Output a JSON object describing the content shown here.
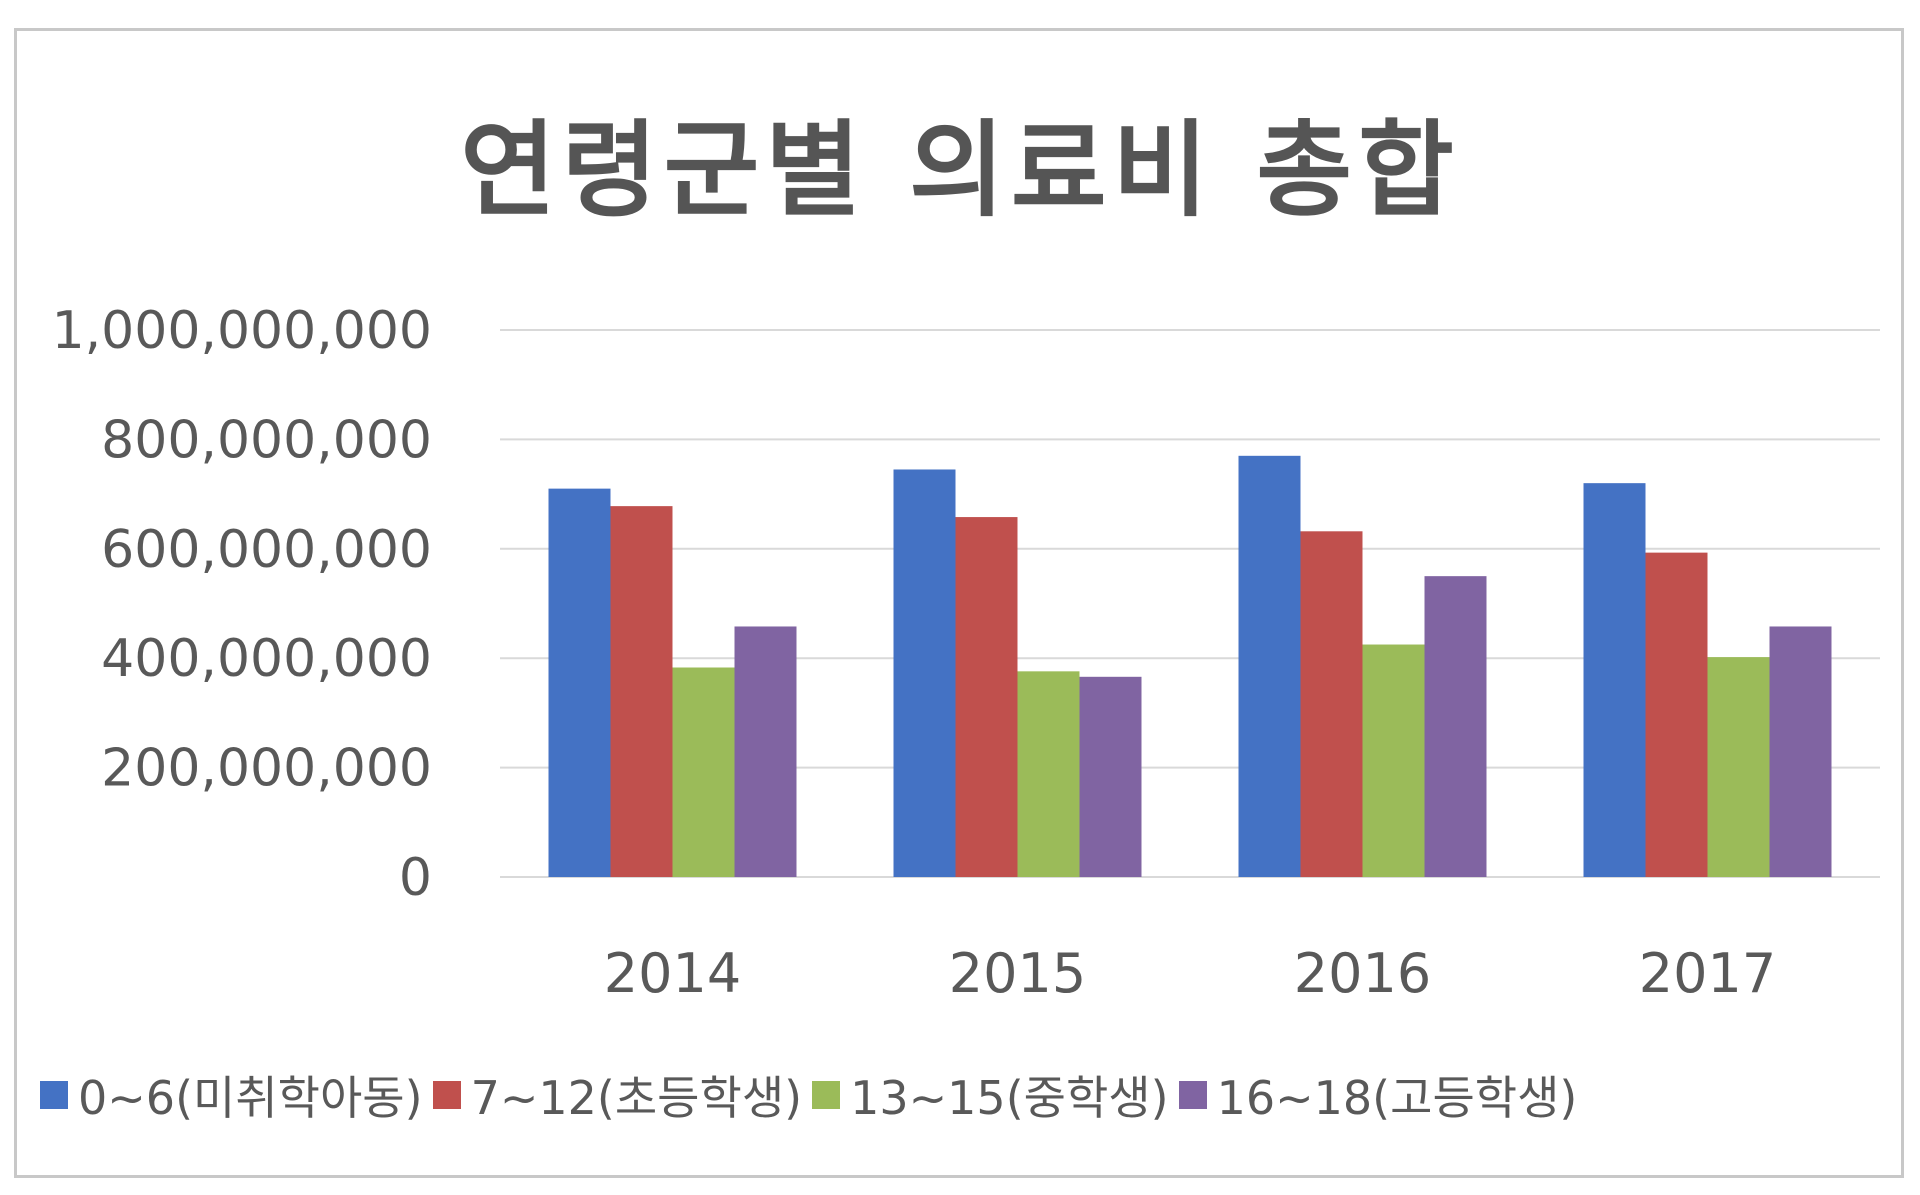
{
  "chart_data": {
    "type": "bar",
    "title": "연령군별 의료비 총합",
    "categories": [
      "2014",
      "2015",
      "2016",
      "2017"
    ],
    "series": [
      {
        "name": "0~6(미취학아동)",
        "color": "#4472c4",
        "values": [
          710000000,
          745000000,
          770000000,
          720000000
        ]
      },
      {
        "name": "7~12(초등학생)",
        "color": "#c0504d",
        "values": [
          678000000,
          658000000,
          632000000,
          593000000
        ]
      },
      {
        "name": "13~15(중학생)",
        "color": "#9bbb59",
        "values": [
          383000000,
          376000000,
          425000000,
          402000000
        ]
      },
      {
        "name": "16~18(고등학생)",
        "color": "#8064a2",
        "values": [
          458000000,
          366000000,
          550000000,
          458000000
        ]
      }
    ],
    "y_ticks": [
      "0",
      "200,000,000",
      "400,000,000",
      "600,000,000",
      "800,000,000",
      "1,000,000,000"
    ],
    "ylim": [
      0,
      1000000000
    ],
    "grid": true,
    "legend_position": "bottom"
  }
}
